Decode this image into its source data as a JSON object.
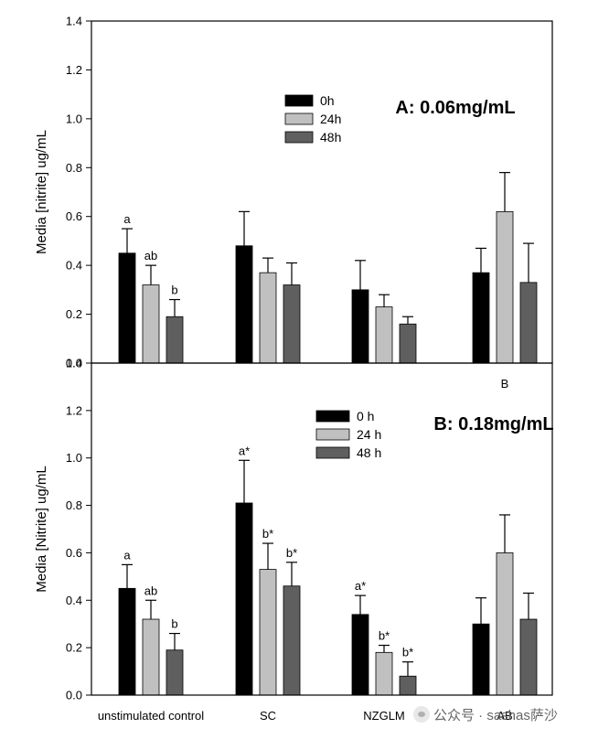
{
  "chart_data": [
    {
      "type": "bar",
      "panel": "top",
      "title": "A: 0.06mg/mL",
      "xlabel": "",
      "ylabel": "Media [nitrite] ug/mL",
      "ylim": [
        0,
        1.4
      ],
      "yticks": [
        "0.0",
        "0.2",
        "0.4",
        "0.6",
        "0.8",
        "1.0",
        "1.2",
        "1.4"
      ],
      "categories": [
        "unstimulated control",
        "SC",
        "NZGLM",
        "AB"
      ],
      "category_tick_labels": [
        "",
        "",
        "",
        "B"
      ],
      "legend_position": "top-center",
      "series": [
        {
          "name": "0h",
          "color": "#000000",
          "values": [
            0.45,
            0.48,
            0.3,
            0.37
          ],
          "errors": [
            0.1,
            0.14,
            0.12,
            0.1
          ],
          "labels": [
            "a",
            "",
            "",
            ""
          ]
        },
        {
          "name": "24h",
          "color": "#c0c0c0",
          "values": [
            0.32,
            0.37,
            0.23,
            0.62
          ],
          "errors": [
            0.08,
            0.06,
            0.05,
            0.16
          ],
          "labels": [
            "ab",
            "",
            "",
            ""
          ]
        },
        {
          "name": "48h",
          "color": "#5f5f5f",
          "values": [
            0.19,
            0.32,
            0.16,
            0.33
          ],
          "errors": [
            0.07,
            0.09,
            0.03,
            0.16
          ],
          "labels": [
            "b",
            "",
            "",
            ""
          ]
        }
      ]
    },
    {
      "type": "bar",
      "panel": "bottom",
      "title": "B: 0.18mg/mL",
      "xlabel": "",
      "ylabel": "Media [Nitrite] ug/mL",
      "ylim": [
        0,
        1.4
      ],
      "yticks": [
        "0.0",
        "0.2",
        "0.4",
        "0.6",
        "0.8",
        "1.0",
        "1.2",
        "1.4"
      ],
      "categories": [
        "unstimulated control",
        "SC",
        "NZGLM",
        "AB"
      ],
      "category_tick_labels": [
        "unstimulated control",
        "SC",
        "NZGLM",
        "AB"
      ],
      "legend_position": "top-center",
      "series": [
        {
          "name": "0 h",
          "color": "#000000",
          "values": [
            0.45,
            0.81,
            0.34,
            0.3
          ],
          "errors": [
            0.1,
            0.18,
            0.08,
            0.11
          ],
          "labels": [
            "a",
            "a*",
            "a*",
            ""
          ]
        },
        {
          "name": "24 h",
          "color": "#c0c0c0",
          "values": [
            0.32,
            0.53,
            0.18,
            0.6
          ],
          "errors": [
            0.08,
            0.11,
            0.03,
            0.16
          ],
          "labels": [
            "ab",
            "b*",
            "b*",
            ""
          ]
        },
        {
          "name": "48 h",
          "color": "#5f5f5f",
          "values": [
            0.19,
            0.46,
            0.08,
            0.32
          ],
          "errors": [
            0.07,
            0.1,
            0.06,
            0.11
          ],
          "labels": [
            "b",
            "b*",
            "b*",
            ""
          ]
        }
      ]
    }
  ],
  "watermark": {
    "icon": "wechat-official-account-icon",
    "text": "公众号 · sashas萨沙"
  }
}
